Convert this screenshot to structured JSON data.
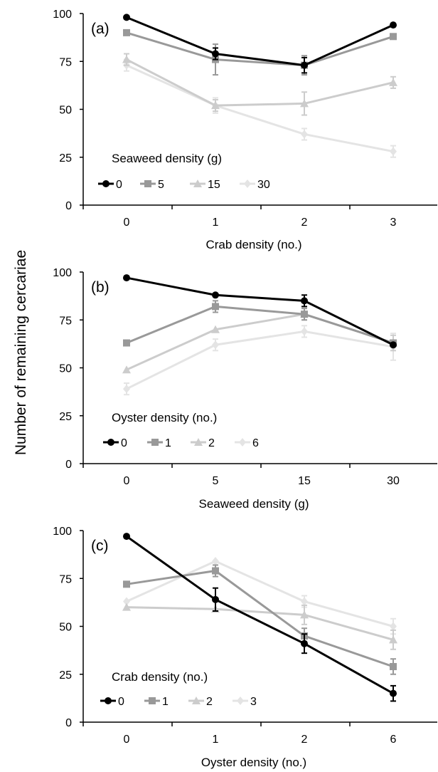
{
  "figure": {
    "ylabel": "Number of remaining cercariae"
  },
  "colors": {
    "s0": "#000000",
    "s1": "#999999",
    "s2": "#cccccc",
    "s3": "#e4e4e4"
  },
  "chart_data": [
    {
      "type": "line",
      "panel_label": "(a)",
      "categories": [
        "0",
        "1",
        "2",
        "3"
      ],
      "xlabel": "Crab density (no.)",
      "ylabel": "Number of remaining cercariae",
      "ylim": [
        0,
        100
      ],
      "yticks": [
        "0",
        "25",
        "50",
        "75",
        "100"
      ],
      "legend_title": "Seaweed density (g)",
      "series": [
        {
          "name": "0",
          "marker": "circle",
          "values": [
            98,
            79,
            73,
            94
          ],
          "errors": [
            0,
            3,
            4,
            0
          ]
        },
        {
          "name": "5",
          "marker": "square",
          "values": [
            90,
            76,
            73,
            88
          ],
          "errors": [
            0,
            8,
            5,
            0
          ]
        },
        {
          "name": "15",
          "marker": "triangle",
          "values": [
            76,
            52,
            53,
            64
          ],
          "errors": [
            3,
            3,
            6,
            3
          ]
        },
        {
          "name": "30",
          "marker": "diamond",
          "values": [
            73,
            52,
            37,
            28
          ],
          "errors": [
            3,
            4,
            3,
            3
          ]
        }
      ]
    },
    {
      "type": "line",
      "panel_label": "(b)",
      "categories": [
        "0",
        "5",
        "15",
        "30"
      ],
      "xlabel": "Seaweed density (g)",
      "ylabel": "Number of remaining cercariae",
      "ylim": [
        0,
        100
      ],
      "yticks": [
        "0",
        "25",
        "50",
        "75",
        "100"
      ],
      "legend_title": "Oyster density (no.)",
      "series": [
        {
          "name": "0",
          "marker": "circle",
          "values": [
            97,
            88,
            85,
            62
          ],
          "errors": [
            0,
            0,
            3,
            0
          ]
        },
        {
          "name": "1",
          "marker": "square",
          "values": [
            63,
            82,
            78,
            63
          ],
          "errors": [
            0,
            3,
            3,
            0
          ]
        },
        {
          "name": "2",
          "marker": "triangle",
          "values": [
            49,
            70,
            78,
            63
          ],
          "errors": [
            0,
            0,
            3,
            4
          ]
        },
        {
          "name": "6",
          "marker": "diamond",
          "values": [
            39,
            62,
            69,
            61
          ],
          "errors": [
            3,
            3,
            3,
            7
          ]
        }
      ]
    },
    {
      "type": "line",
      "panel_label": "(c)",
      "categories": [
        "0",
        "1",
        "2",
        "6"
      ],
      "xlabel": "Oyster density (no.)",
      "ylabel": "Number of remaining cercariae",
      "ylim": [
        0,
        100
      ],
      "yticks": [
        "0",
        "25",
        "50",
        "75",
        "100"
      ],
      "legend_title": "Crab density (no.)",
      "series": [
        {
          "name": "0",
          "marker": "circle",
          "values": [
            97,
            64,
            41,
            15
          ],
          "errors": [
            0,
            6,
            5,
            4
          ]
        },
        {
          "name": "1",
          "marker": "square",
          "values": [
            72,
            79,
            45,
            29
          ],
          "errors": [
            0,
            3,
            4,
            4
          ]
        },
        {
          "name": "2",
          "marker": "triangle",
          "values": [
            60,
            59,
            56,
            43
          ],
          "errors": [
            0,
            0,
            5,
            5
          ]
        },
        {
          "name": "3",
          "marker": "diamond",
          "values": [
            63,
            84,
            63,
            50
          ],
          "errors": [
            0,
            0,
            3,
            4
          ]
        }
      ]
    }
  ]
}
